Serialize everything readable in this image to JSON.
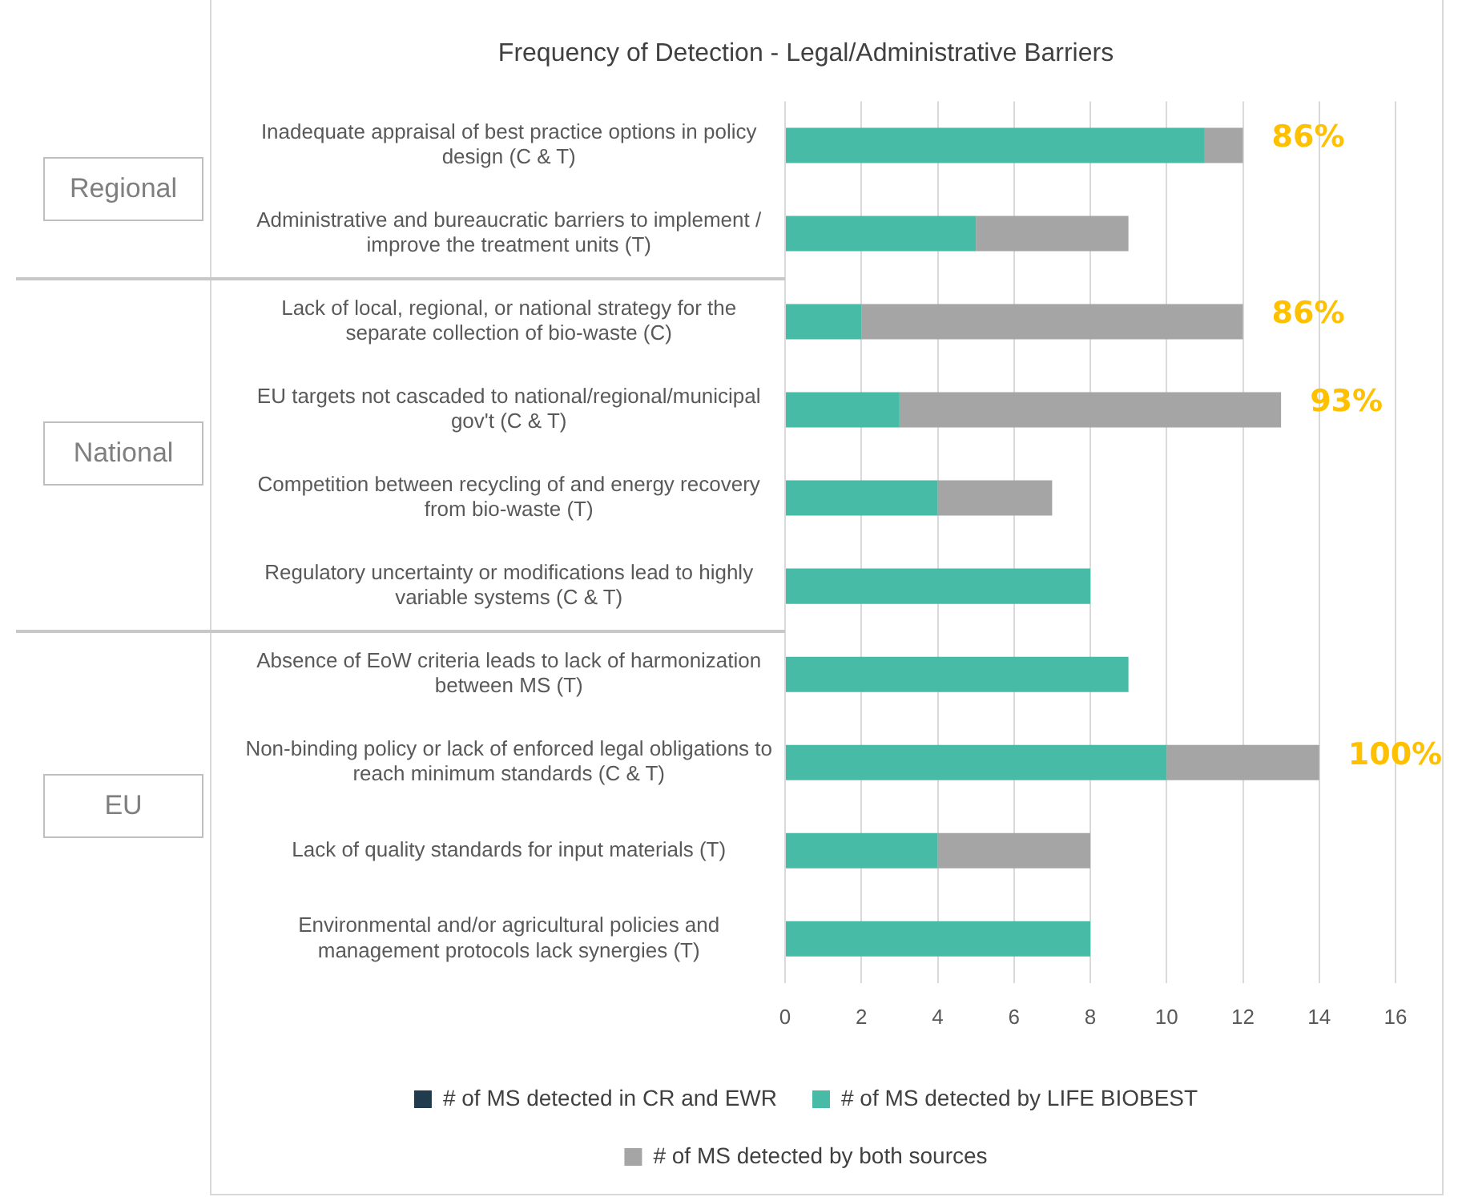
{
  "chart_data": {
    "type": "bar",
    "orientation": "horizontal",
    "stacked": true,
    "title": "Frequency of Detection - Legal/Administrative Barriers",
    "categories": [
      "Inadequate appraisal of best practice options in policy design (C & T)",
      "Administrative and bureaucratic barriers to implement / improve the treatment units (T)",
      "Lack of local, regional, or national strategy for the separate collection of bio-waste (C)",
      "EU targets not cascaded to national/regional/municipal gov't (C & T)",
      "Competition between recycling of and energy recovery from bio-waste (T)",
      "Regulatory uncertainty or modifications lead to highly variable systems (C & T)",
      "Absence of EoW criteria leads to lack of harmonization between MS (T)",
      "Non-binding policy or lack of enforced legal obligations to reach minimum standards (C & T)",
      "Lack of quality standards for input materials (T)",
      "Environmental and/or agricultural policies and management protocols lack synergies (T)"
    ],
    "series": [
      {
        "name": "# of MS detected in CR and EWR",
        "color": "#1f3b4d",
        "values": [
          0,
          0,
          0,
          0,
          0,
          0,
          0,
          0,
          0,
          0
        ]
      },
      {
        "name": "# of MS detected by LIFE BIOBEST",
        "color": "#47bba5",
        "values": [
          11,
          5,
          2,
          3,
          4,
          8,
          9,
          10,
          4,
          8
        ]
      },
      {
        "name": "# of MS detected by both sources",
        "color": "#a5a5a5",
        "values": [
          1,
          4,
          10,
          10,
          3,
          0,
          0,
          4,
          4,
          0
        ]
      }
    ],
    "xlim": [
      0,
      16
    ],
    "xticks": [
      0,
      2,
      4,
      6,
      8,
      10,
      12,
      14,
      16
    ],
    "grid": "x",
    "legend": "bottom",
    "annotations": [
      {
        "text": "86%",
        "x": 12,
        "y": "Inadequate appraisal of best practice options in policy design (C & T)"
      },
      {
        "text": "86%",
        "x": 12,
        "y": "Lack of local, regional, or national strategy for the separate collection of bio-waste (C)"
      },
      {
        "text": "93%",
        "x": 13,
        "y": "EU targets not cascaded to national/regional/municipal gov't (C & T)"
      },
      {
        "text": "100%",
        "x": 14,
        "y": "Non-binding policy or lack of enforced legal obligations to reach minimum standards (C & T)"
      },
      "Regional",
      "National",
      "EU"
    ]
  }
}
